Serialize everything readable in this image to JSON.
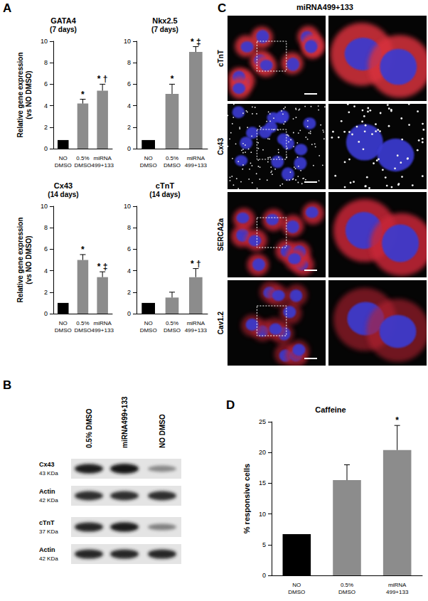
{
  "panels": [
    "A",
    "B",
    "C",
    "D"
  ],
  "chart_data": [
    {
      "type": "bar",
      "title": "GATA4",
      "subtitle": "(7 days)",
      "ylabel": "Relative gene expression (vs NO DMSO)",
      "categories": [
        "NO DMSO",
        "0.5% DMSO",
        "miRNA 499+133"
      ],
      "values": [
        0.8,
        4.2,
        5.4
      ],
      "errors": [
        null,
        0.4,
        0.6
      ],
      "annotations": [
        null,
        "*",
        "* †"
      ],
      "colors": [
        "#000000",
        "#8c8c8c",
        "#8c8c8c"
      ],
      "ylim": [
        0,
        10
      ],
      "yticks": [
        0,
        2,
        4,
        6,
        8,
        10
      ],
      "grid": false
    },
    {
      "type": "bar",
      "title": "Nkx2.5",
      "subtitle": "(7 days)",
      "categories": [
        "NO DMSO",
        "0.5% DMSO",
        "miRNA 499+133"
      ],
      "values": [
        0.8,
        5.1,
        9.0
      ],
      "errors": [
        null,
        0.9,
        0.5
      ],
      "annotations": [
        null,
        "*",
        "* ‡"
      ],
      "colors": [
        "#000000",
        "#8c8c8c",
        "#8c8c8c"
      ],
      "ylim": [
        0,
        10
      ],
      "yticks": [
        0,
        2,
        4,
        6,
        8,
        10
      ],
      "grid": false
    },
    {
      "type": "bar",
      "title": "Cx43",
      "subtitle": "(14 days)",
      "ylabel": "Relative gene expression (vs NO DMSO)",
      "categories": [
        "NO DMSO",
        "0.5% DMSO",
        "miRNA 499+133"
      ],
      "values": [
        1.0,
        5.0,
        3.4
      ],
      "errors": [
        null,
        0.5,
        0.5
      ],
      "annotations": [
        null,
        "*",
        "* ‡"
      ],
      "colors": [
        "#000000",
        "#8c8c8c",
        "#8c8c8c"
      ],
      "ylim": [
        0,
        10
      ],
      "yticks": [
        0,
        2,
        4,
        6,
        8,
        10
      ],
      "grid": false
    },
    {
      "type": "bar",
      "title": "cTnT",
      "subtitle": "(14 days)",
      "categories": [
        "NO DMSO",
        "0.5% DMSO",
        "miRNA 499+133"
      ],
      "values": [
        1.0,
        1.5,
        3.4
      ],
      "errors": [
        null,
        0.5,
        0.8
      ],
      "annotations": [
        null,
        null,
        "* †"
      ],
      "colors": [
        "#000000",
        "#8c8c8c",
        "#8c8c8c"
      ],
      "ylim": [
        0,
        10
      ],
      "yticks": [
        0,
        2,
        4,
        6,
        8,
        10
      ],
      "grid": false
    },
    {
      "type": "bar",
      "title": "Caffeine",
      "ylabel": "% responsive cells",
      "categories": [
        "NO DMSO",
        "0.5% DMSO",
        "miRNA 499+133"
      ],
      "values": [
        6.7,
        15.5,
        20.4
      ],
      "errors": [
        null,
        2.5,
        4.0
      ],
      "annotations": [
        null,
        null,
        "*"
      ],
      "colors": [
        "#000000",
        "#8c8c8c",
        "#8c8c8c"
      ],
      "ylim": [
        0,
        25
      ],
      "yticks": [
        0,
        5,
        10,
        15,
        20,
        25
      ],
      "grid": false
    }
  ],
  "blot": {
    "lanes": [
      "0.5% DMSO",
      "miRNA499+133",
      "NO DMSO"
    ],
    "rows": [
      {
        "label": "Cx43",
        "size": "43 KDa"
      },
      {
        "label": "Actin",
        "size": "42 KDa"
      },
      {
        "label": "cTnT",
        "size": "37 KDa"
      },
      {
        "label": "Actin",
        "size": "42 KDa"
      }
    ]
  },
  "images": {
    "title": "miRNA499+133",
    "rows": [
      "cTnT",
      "Cx43",
      "SERCA2a",
      "Cav1.2"
    ]
  }
}
